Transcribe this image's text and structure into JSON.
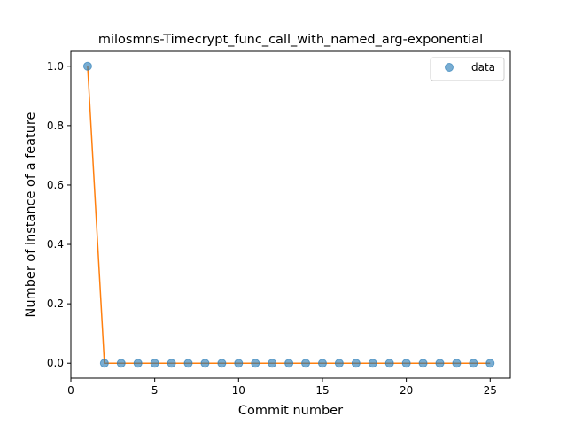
{
  "chart_data": {
    "type": "scatter",
    "title": "milosmns-Timecrypt_func_call_with_named_arg-exponential",
    "xlabel": "Commit number",
    "ylabel": "Number of instance of a feature",
    "xlim": [
      0,
      26.2
    ],
    "ylim": [
      -0.05,
      1.05
    ],
    "xticks": [
      0,
      5,
      10,
      15,
      20,
      25
    ],
    "xtick_labels": [
      "0",
      "5",
      "10",
      "15",
      "20",
      "25"
    ],
    "yticks": [
      0.0,
      0.2,
      0.4,
      0.6,
      0.8,
      1.0
    ],
    "ytick_labels": [
      "0.0",
      "0.2",
      "0.4",
      "0.6",
      "0.8",
      "1.0"
    ],
    "grid": false,
    "legend_position": "top-right",
    "series": [
      {
        "name": "data",
        "kind": "scatter",
        "color": "#1f77b4",
        "x": [
          1,
          2,
          3,
          4,
          5,
          6,
          7,
          8,
          9,
          10,
          11,
          12,
          13,
          14,
          15,
          16,
          17,
          18,
          19,
          20,
          21,
          22,
          23,
          24,
          25
        ],
        "y": [
          1,
          0,
          0,
          0,
          0,
          0,
          0,
          0,
          0,
          0,
          0,
          0,
          0,
          0,
          0,
          0,
          0,
          0,
          0,
          0,
          0,
          0,
          0,
          0,
          0
        ]
      },
      {
        "kind": "line",
        "color": "#ff7f0e",
        "x": [
          1,
          2,
          3,
          4,
          5,
          6,
          7,
          8,
          9,
          10,
          11,
          12,
          13,
          14,
          15,
          16,
          17,
          18,
          19,
          20,
          21,
          22,
          23,
          24,
          25
        ],
        "y": [
          1,
          0,
          0,
          0,
          0,
          0,
          0,
          0,
          0,
          0,
          0,
          0,
          0,
          0,
          0,
          0,
          0,
          0,
          0,
          0,
          0,
          0,
          0,
          0,
          0
        ]
      }
    ]
  }
}
